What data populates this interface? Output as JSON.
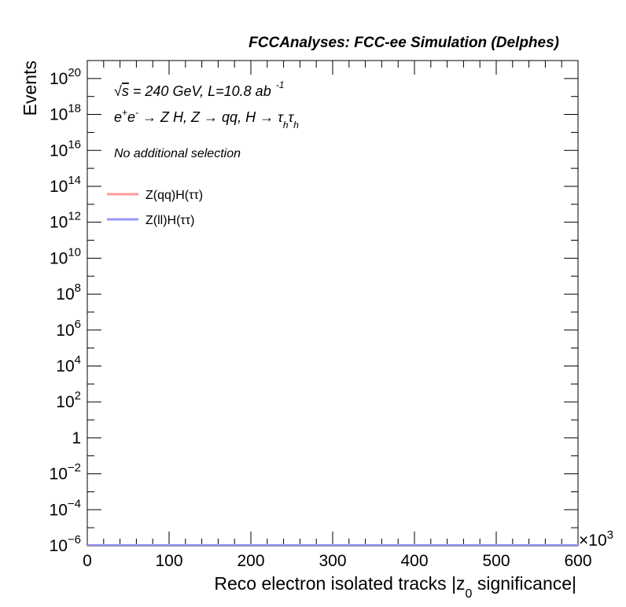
{
  "chart_data": {
    "type": "line",
    "title": "FCCAnalyses: FCC-ee Simulation (Delphes)",
    "xlabel_main": "Reco electron isolated tracks |z",
    "xlabel_sub": "0",
    "xlabel_tail": " significance|",
    "ylabel": "Events",
    "x_multiplier_base": "×10",
    "x_multiplier_exp": "3",
    "xlim": [
      0,
      600000
    ],
    "ylim": [
      1e-06,
      1e+21
    ],
    "yscale": "log",
    "grid": false,
    "legend_position": "top-left",
    "x_ticks": [
      {
        "value": 0,
        "label": "0"
      },
      {
        "value": 100000,
        "label": "100"
      },
      {
        "value": 200000,
        "label": "200"
      },
      {
        "value": 300000,
        "label": "300"
      },
      {
        "value": 400000,
        "label": "400"
      },
      {
        "value": 500000,
        "label": "500"
      },
      {
        "value": 600000,
        "label": "600"
      }
    ],
    "y_ticks": [
      {
        "exp": -6,
        "base": "10",
        "sup": "−6"
      },
      {
        "exp": -4,
        "base": "10",
        "sup": "−4"
      },
      {
        "exp": -2,
        "base": "10",
        "sup": "−2"
      },
      {
        "exp": 0,
        "base": "1",
        "sup": ""
      },
      {
        "exp": 2,
        "base": "10",
        "sup": "2"
      },
      {
        "exp": 4,
        "base": "10",
        "sup": "4"
      },
      {
        "exp": 6,
        "base": "10",
        "sup": "6"
      },
      {
        "exp": 8,
        "base": "10",
        "sup": "8"
      },
      {
        "exp": 10,
        "base": "10",
        "sup": "10"
      },
      {
        "exp": 12,
        "base": "10",
        "sup": "12"
      },
      {
        "exp": 14,
        "base": "10",
        "sup": "14"
      },
      {
        "exp": 16,
        "base": "10",
        "sup": "16"
      },
      {
        "exp": 18,
        "base": "10",
        "sup": "18"
      },
      {
        "exp": 20,
        "base": "10",
        "sup": "20"
      }
    ],
    "annotations": {
      "energy_prefix": "√",
      "energy_s": "s",
      "energy_text": " = 240 GeV, L=10.8 ab",
      "energy_sup": "-1",
      "process_e1": "e",
      "process_e1_sup": "+",
      "process_e2": "e",
      "process_e2_sup": "-",
      "process_part1": " → Z H, Z  → qq, H  → ",
      "process_tau": "τ",
      "process_sub": "h",
      "selection": "No additional selection"
    },
    "series": [
      {
        "name": "Z(qq)H(ττ)",
        "color": "#ff9999",
        "x": [
          0,
          600000
        ],
        "y": [
          1e-06,
          1e-06
        ]
      },
      {
        "name": "Z(ll)H(ττ)",
        "color": "#9999ff",
        "x": [
          0,
          600000
        ],
        "y": [
          1e-06,
          1e-06
        ]
      }
    ]
  }
}
